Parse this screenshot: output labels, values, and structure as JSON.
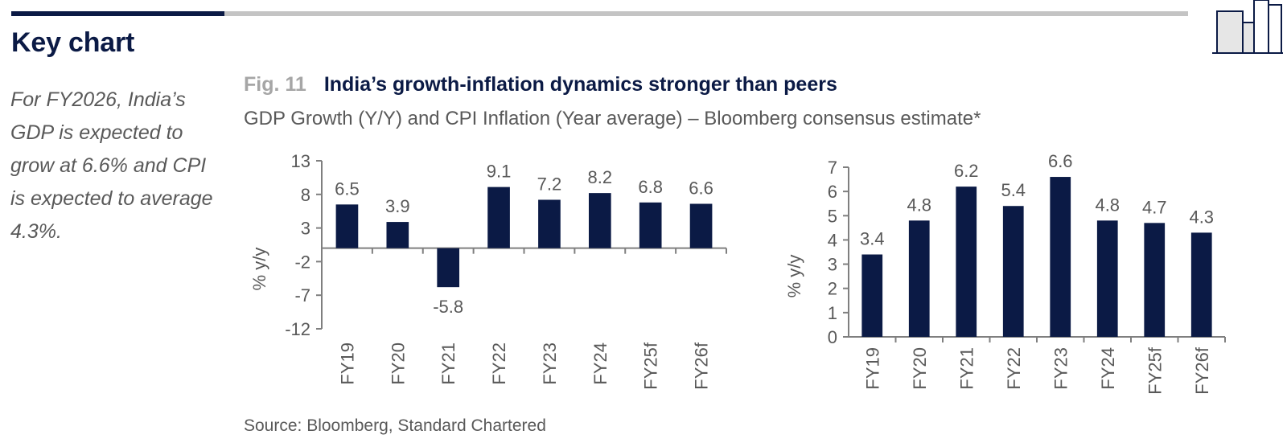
{
  "header": {
    "section_title": "Key chart"
  },
  "side_note": "For FY2026, India’s GDP is expected to grow at 6.6% and CPI is expected to average 4.3%.",
  "figure": {
    "number": "Fig. 11",
    "title": "India’s growth-inflation dynamics stronger than peers",
    "subtitle": "GDP Growth (Y/Y) and CPI Inflation (Year average) – Bloomberg consensus estimate*",
    "source": "Source: Bloomberg, Standard Chartered"
  },
  "colors": {
    "bar": "#0b1a45",
    "axis": "#7f7f7f",
    "text": "#595959",
    "accent_dark": "#0b1a45",
    "rule_light": "#c4c4c4"
  },
  "icons": {
    "logo": "bar-chart-logo-icon"
  },
  "chart_data": [
    {
      "type": "bar",
      "categories": [
        "FY19",
        "FY20",
        "FY21",
        "FY22",
        "FY23",
        "FY24",
        "FY25f",
        "FY26f"
      ],
      "values": [
        6.5,
        3.9,
        -5.8,
        9.1,
        7.2,
        8.2,
        6.8,
        6.6
      ],
      "value_labels": [
        "6.5",
        "3.9",
        "-5.8",
        "9.1",
        "7.2",
        "8.2",
        "6.8",
        "6.6"
      ],
      "ylabel": "% y/y",
      "ylim": [
        -12,
        13
      ],
      "yticks": [
        -12,
        -7,
        -2,
        3,
        8,
        13
      ],
      "grid": false,
      "legend": "none"
    },
    {
      "type": "bar",
      "categories": [
        "FY19",
        "FY20",
        "FY21",
        "FY22",
        "FY23",
        "FY24",
        "FY25f",
        "FY26f"
      ],
      "values": [
        3.4,
        4.8,
        6.2,
        5.4,
        6.6,
        4.8,
        4.7,
        4.3
      ],
      "value_labels": [
        "3.4",
        "4.8",
        "6.2",
        "5.4",
        "6.6",
        "4.8",
        "4.7",
        "4.3"
      ],
      "ylabel": "% y/y",
      "ylim": [
        0,
        7
      ],
      "yticks": [
        0,
        1,
        2,
        3,
        4,
        5,
        6,
        7
      ],
      "grid": false,
      "legend": "none"
    }
  ]
}
